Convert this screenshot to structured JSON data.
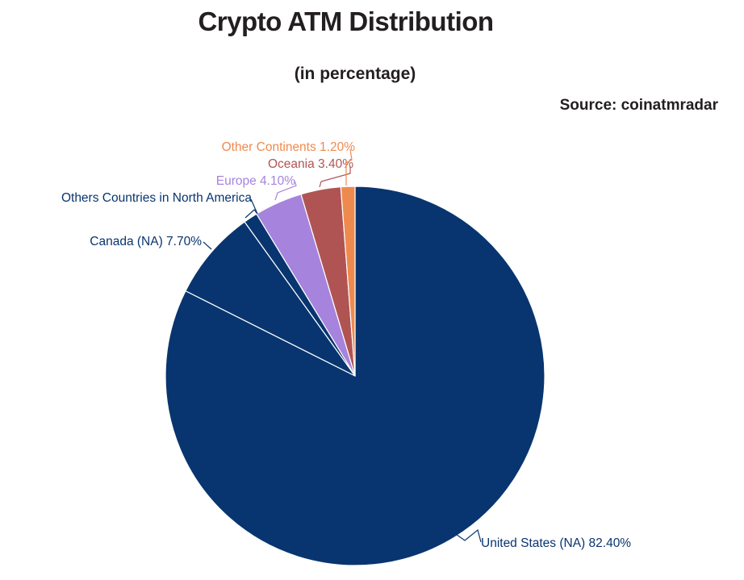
{
  "header": {
    "title": "Crypto ATM Distribution",
    "subtitle": "(in percentage)",
    "source": "Source: coinatmradar"
  },
  "chart_data": {
    "type": "pie",
    "title": "Crypto ATM Distribution",
    "subtitle": "(in percentage)",
    "source": "Source: coinatmradar",
    "start_angle_deg": 0,
    "direction": "clockwise",
    "slices": [
      {
        "name": "United States (NA)",
        "value": 82.4,
        "label": "United States (NA) 82.40%",
        "color": "#08356f"
      },
      {
        "name": "Canada (NA)",
        "value": 7.7,
        "label": "Canada (NA) 7.70%",
        "color": "#08356f"
      },
      {
        "name": "Others Countries in North America",
        "value": 1.2,
        "label": "Others Countries in North America",
        "color": "#08356f"
      },
      {
        "name": "Europe",
        "value": 4.1,
        "label": "Europe 4.10%",
        "color": "#a683dc"
      },
      {
        "name": "Oceania",
        "value": 3.4,
        "label": "Oceania 3.40%",
        "color": "#b05453"
      },
      {
        "name": "Other Continents",
        "value": 1.2,
        "label": "Other Continents 1.20%",
        "color": "#ef8a4f"
      }
    ]
  }
}
